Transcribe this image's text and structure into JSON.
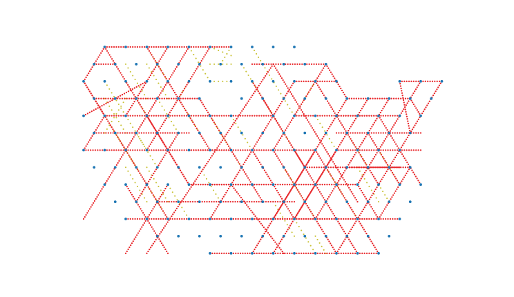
{
  "diagram": {
    "kind": "triangular-lattice-edge-pattern",
    "colors": {
      "node": "#1f77b4",
      "edge_primary": "#e8262a",
      "edge_secondary": "#c9c235"
    },
    "lattice": {
      "cols": 17,
      "rows": 13
    },
    "nodes": [
      [
        1,
        0
      ],
      [
        2,
        0
      ],
      [
        3,
        0
      ],
      [
        4,
        0
      ],
      [
        5,
        0
      ],
      [
        6,
        0
      ],
      [
        7,
        0
      ],
      [
        8,
        0
      ],
      [
        9,
        0
      ],
      [
        10,
        0
      ],
      [
        0.5,
        1
      ],
      [
        1.5,
        1
      ],
      [
        2.5,
        1
      ],
      [
        3.5,
        1
      ],
      [
        4.5,
        1
      ],
      [
        5.5,
        1
      ],
      [
        6.5,
        1
      ],
      [
        7.5,
        1
      ],
      [
        8.5,
        1
      ],
      [
        9.5,
        1
      ],
      [
        10.5,
        1
      ],
      [
        11.5,
        1
      ],
      [
        0,
        2
      ],
      [
        1,
        2
      ],
      [
        2,
        2
      ],
      [
        3,
        2
      ],
      [
        4,
        2
      ],
      [
        5,
        2
      ],
      [
        6,
        2
      ],
      [
        7,
        2
      ],
      [
        8,
        2
      ],
      [
        9,
        2
      ],
      [
        10,
        2
      ],
      [
        11,
        2
      ],
      [
        12,
        2
      ],
      [
        15,
        2
      ],
      [
        16,
        2
      ],
      [
        17,
        2
      ],
      [
        0.5,
        3
      ],
      [
        1.5,
        3
      ],
      [
        2.5,
        3
      ],
      [
        3.5,
        3
      ],
      [
        4.5,
        3
      ],
      [
        5.5,
        3
      ],
      [
        7.5,
        3
      ],
      [
        8.5,
        3
      ],
      [
        9.5,
        3
      ],
      [
        10.5,
        3
      ],
      [
        11.5,
        3
      ],
      [
        12.5,
        3
      ],
      [
        13.5,
        3
      ],
      [
        14.5,
        3
      ],
      [
        15.5,
        3
      ],
      [
        16.5,
        3
      ],
      [
        0,
        4
      ],
      [
        1,
        4
      ],
      [
        2,
        4
      ],
      [
        3,
        4
      ],
      [
        4,
        4
      ],
      [
        5,
        4
      ],
      [
        6,
        4
      ],
      [
        7,
        4
      ],
      [
        9,
        4
      ],
      [
        10,
        4
      ],
      [
        11,
        4
      ],
      [
        12,
        4
      ],
      [
        13,
        4
      ],
      [
        14,
        4
      ],
      [
        15,
        4
      ],
      [
        16,
        4
      ],
      [
        0.5,
        5
      ],
      [
        1.5,
        5
      ],
      [
        2.5,
        5
      ],
      [
        3.5,
        5
      ],
      [
        4.5,
        5
      ],
      [
        5.5,
        5
      ],
      [
        6.5,
        5
      ],
      [
        7.5,
        5
      ],
      [
        8.5,
        5
      ],
      [
        9.5,
        5
      ],
      [
        10.5,
        5
      ],
      [
        11.5,
        5
      ],
      [
        12.5,
        5
      ],
      [
        13.5,
        5
      ],
      [
        14.5,
        5
      ],
      [
        15.5,
        5
      ],
      [
        0,
        6
      ],
      [
        1,
        6
      ],
      [
        2,
        6
      ],
      [
        3,
        6
      ],
      [
        4,
        6
      ],
      [
        5,
        6
      ],
      [
        6,
        6
      ],
      [
        7,
        6
      ],
      [
        8,
        6
      ],
      [
        9,
        6
      ],
      [
        10,
        6
      ],
      [
        11,
        6
      ],
      [
        12,
        6
      ],
      [
        13,
        6
      ],
      [
        14,
        6
      ],
      [
        15,
        6
      ],
      [
        0.5,
        7
      ],
      [
        1.5,
        7
      ],
      [
        2.5,
        7
      ],
      [
        3.5,
        7
      ],
      [
        4.5,
        7
      ],
      [
        5.5,
        7
      ],
      [
        6.5,
        7
      ],
      [
        7.5,
        7
      ],
      [
        8.5,
        7
      ],
      [
        9.5,
        7
      ],
      [
        10.5,
        7
      ],
      [
        11.5,
        7
      ],
      [
        12.5,
        7
      ],
      [
        13.5,
        7
      ],
      [
        14.5,
        7
      ],
      [
        15.5,
        7
      ],
      [
        1,
        8
      ],
      [
        2,
        8
      ],
      [
        3,
        8
      ],
      [
        4,
        8
      ],
      [
        5,
        8
      ],
      [
        6,
        8
      ],
      [
        7,
        8
      ],
      [
        8,
        8
      ],
      [
        9,
        8
      ],
      [
        10,
        8
      ],
      [
        11,
        8
      ],
      [
        12,
        8
      ],
      [
        13,
        8
      ],
      [
        14,
        8
      ],
      [
        15,
        8
      ],
      [
        16,
        8
      ],
      [
        1.5,
        9
      ],
      [
        2.5,
        9
      ],
      [
        3.5,
        9
      ],
      [
        4.5,
        9
      ],
      [
        5.5,
        9
      ],
      [
        6.5,
        9
      ],
      [
        7.5,
        9
      ],
      [
        8.5,
        9
      ],
      [
        9.5,
        9
      ],
      [
        10.5,
        9
      ],
      [
        11.5,
        9
      ],
      [
        12.5,
        9
      ],
      [
        13.5,
        9
      ],
      [
        14.5,
        9
      ],
      [
        15.5,
        9
      ],
      [
        2,
        10
      ],
      [
        3,
        10
      ],
      [
        4,
        10
      ],
      [
        5,
        10
      ],
      [
        6,
        10
      ],
      [
        7,
        10
      ],
      [
        8,
        10
      ],
      [
        9,
        10
      ],
      [
        10,
        10
      ],
      [
        11,
        10
      ],
      [
        12,
        10
      ],
      [
        13,
        10
      ],
      [
        14,
        10
      ],
      [
        15,
        10
      ],
      [
        3.5,
        11
      ],
      [
        4.5,
        11
      ],
      [
        5.5,
        11
      ],
      [
        6.5,
        11
      ],
      [
        7.5,
        11
      ],
      [
        8.5,
        11
      ],
      [
        9.5,
        11
      ],
      [
        10.5,
        11
      ],
      [
        11.5,
        11
      ],
      [
        12.5,
        11
      ],
      [
        13.5,
        11
      ],
      [
        14.5,
        11
      ],
      [
        6,
        12
      ],
      [
        7,
        12
      ],
      [
        8,
        12
      ],
      [
        9,
        12
      ],
      [
        10,
        12
      ],
      [
        11,
        12
      ],
      [
        12,
        12
      ],
      [
        13,
        12
      ],
      [
        14,
        12
      ]
    ],
    "primary_edges": [
      [
        [
          1,
          0
        ],
        [
          7,
          0
        ]
      ],
      [
        [
          0,
          2
        ],
        [
          1,
          0
        ]
      ],
      [
        [
          0.5,
          1
        ],
        [
          1.5,
          1
        ]
      ],
      [
        [
          1,
          0
        ],
        [
          5,
          8
        ]
      ],
      [
        [
          0,
          2
        ],
        [
          4,
          10
        ]
      ],
      [
        [
          5,
          0
        ],
        [
          0,
          10
        ]
      ],
      [
        [
          3,
          2
        ],
        [
          0,
          4
        ]
      ],
      [
        [
          4,
          0
        ],
        [
          2,
          4
        ]
      ],
      [
        [
          6,
          0
        ],
        [
          3,
          6
        ]
      ],
      [
        [
          3,
          0
        ],
        [
          6,
          6
        ]
      ],
      [
        [
          8,
          1
        ],
        [
          11.5,
          1
        ]
      ],
      [
        [
          9,
          1
        ],
        [
          3,
          12
        ]
      ],
      [
        [
          9,
          1
        ],
        [
          13,
          9
        ]
      ],
      [
        [
          11.5,
          1
        ],
        [
          12.5,
          3
        ]
      ],
      [
        [
          11.5,
          1
        ],
        [
          9,
          6
        ]
      ],
      [
        [
          8,
          2
        ],
        [
          9.5,
          5
        ]
      ],
      [
        [
          10,
          2
        ],
        [
          8,
          6
        ]
      ],
      [
        [
          8.5,
          3
        ],
        [
          10.5,
          7
        ]
      ],
      [
        [
          10,
          2
        ],
        [
          12,
          2
        ]
      ],
      [
        [
          11,
          2
        ],
        [
          11,
          2
        ]
      ],
      [
        [
          0,
          2
        ],
        [
          1,
          4
        ]
      ],
      [
        [
          1,
          4
        ],
        [
          0,
          6
        ]
      ],
      [
        [
          0,
          6
        ],
        [
          2,
          6
        ]
      ],
      [
        [
          1,
          4
        ],
        [
          9,
          4
        ]
      ],
      [
        [
          0.5,
          3
        ],
        [
          5.5,
          3
        ]
      ],
      [
        [
          0.5,
          5
        ],
        [
          5,
          5
        ]
      ],
      [
        [
          5.5,
          3
        ],
        [
          8.5,
          9
        ]
      ],
      [
        [
          5,
          6
        ],
        [
          11,
          6
        ]
      ],
      [
        [
          2,
          6
        ],
        [
          7,
          6
        ]
      ],
      [
        [
          3,
          4
        ],
        [
          5,
          8
        ]
      ],
      [
        [
          4.5,
          5
        ],
        [
          2.5,
          9
        ]
      ],
      [
        [
          6,
          8
        ],
        [
          8,
          8
        ]
      ],
      [
        [
          5,
          8
        ],
        [
          13,
          8
        ]
      ],
      [
        [
          4,
          8
        ],
        [
          2,
          12
        ]
      ],
      [
        [
          2,
          8
        ],
        [
          4,
          12
        ]
      ],
      [
        [
          3.5,
          9
        ],
        [
          10,
          9
        ]
      ],
      [
        [
          2,
          10
        ],
        [
          14,
          10
        ]
      ],
      [
        [
          5,
          10
        ],
        [
          12,
          10
        ]
      ],
      [
        [
          6,
          12
        ],
        [
          14,
          12
        ]
      ],
      [
        [
          6,
          10
        ],
        [
          8,
          6
        ]
      ],
      [
        [
          8,
          6
        ],
        [
          10,
          10
        ]
      ],
      [
        [
          9,
          6
        ],
        [
          12,
          12
        ]
      ],
      [
        [
          10,
          6
        ],
        [
          13,
          12
        ]
      ],
      [
        [
          7,
          8
        ],
        [
          9.5,
          12
        ]
      ],
      [
        [
          11,
          6
        ],
        [
          8,
          12
        ]
      ],
      [
        [
          11,
          6
        ],
        [
          14,
          12
        ]
      ],
      [
        [
          12,
          6
        ],
        [
          9,
          12
        ]
      ],
      [
        [
          11,
          2
        ],
        [
          14,
          8
        ]
      ],
      [
        [
          12.5,
          3
        ],
        [
          15.5,
          3
        ]
      ],
      [
        [
          12,
          4
        ],
        [
          14,
          4
        ]
      ],
      [
        [
          10,
          4
        ],
        [
          15,
          4
        ]
      ],
      [
        [
          12.5,
          3
        ],
        [
          9,
          10
        ]
      ],
      [
        [
          13.5,
          3
        ],
        [
          10,
          10
        ]
      ],
      [
        [
          14.5,
          3
        ],
        [
          11,
          10
        ]
      ],
      [
        [
          15,
          2
        ],
        [
          17,
          2
        ]
      ],
      [
        [
          15,
          2
        ],
        [
          15.5,
          5
        ]
      ],
      [
        [
          17,
          2
        ],
        [
          12,
          12
        ]
      ],
      [
        [
          16,
          2
        ],
        [
          13,
          8
        ]
      ],
      [
        [
          12,
          5
        ],
        [
          16,
          5
        ]
      ],
      [
        [
          13.5,
          5
        ],
        [
          15,
          8
        ]
      ],
      [
        [
          15.5,
          3
        ],
        [
          16,
          4
        ]
      ],
      [
        [
          14,
          4
        ],
        [
          16,
          8
        ]
      ],
      [
        [
          12,
          6
        ],
        [
          16,
          6
        ]
      ],
      [
        [
          12.5,
          7
        ],
        [
          15.5,
          7
        ]
      ],
      [
        [
          10.5,
          7
        ],
        [
          15,
          7
        ]
      ],
      [
        [
          13,
          8
        ],
        [
          14,
          10
        ]
      ],
      [
        [
          15.5,
          7
        ],
        [
          14,
          10
        ]
      ],
      [
        [
          9,
          10
        ],
        [
          15,
          10
        ]
      ]
    ],
    "secondary_edges": [
      [
        [
          3,
          0
        ],
        [
          4,
          2
        ]
      ],
      [
        [
          5,
          0
        ],
        [
          6,
          2
        ]
      ],
      [
        [
          6,
          0
        ],
        [
          7,
          0.5
        ]
      ],
      [
        [
          7,
          0
        ],
        [
          6.5,
          1
        ]
      ],
      [
        [
          8,
          0
        ],
        [
          8.5,
          1
        ]
      ],
      [
        [
          2,
          1
        ],
        [
          3,
          3
        ]
      ],
      [
        [
          3,
          1
        ],
        [
          4,
          3
        ]
      ],
      [
        [
          6,
          1
        ],
        [
          7,
          1
        ]
      ],
      [
        [
          1,
          2
        ],
        [
          2,
          4
        ]
      ],
      [
        [
          2,
          2
        ],
        [
          3,
          4
        ]
      ],
      [
        [
          5,
          2
        ],
        [
          4.5,
          3
        ]
      ],
      [
        [
          6,
          2
        ],
        [
          7,
          2
        ]
      ],
      [
        [
          7.5,
          1
        ],
        [
          9,
          4
        ]
      ],
      [
        [
          8.5,
          1
        ],
        [
          10,
          4
        ]
      ],
      [
        [
          11,
          2
        ],
        [
          10,
          4
        ]
      ],
      [
        [
          1,
          3
        ],
        [
          2,
          5
        ]
      ],
      [
        [
          2,
          3
        ],
        [
          1,
          5
        ]
      ],
      [
        [
          3.5,
          3
        ],
        [
          4.5,
          5
        ]
      ],
      [
        [
          4.5,
          3
        ],
        [
          5.5,
          5
        ]
      ],
      [
        [
          1,
          4
        ],
        [
          2.5,
          7
        ]
      ],
      [
        [
          2,
          4
        ],
        [
          3,
          6
        ]
      ],
      [
        [
          6,
          4
        ],
        [
          7,
          6
        ]
      ],
      [
        [
          7,
          4
        ],
        [
          8,
          6
        ]
      ],
      [
        [
          9,
          4
        ],
        [
          10.5,
          7
        ]
      ],
      [
        [
          11,
          4
        ],
        [
          12,
          6
        ]
      ],
      [
        [
          1.5,
          5
        ],
        [
          3,
          8
        ]
      ],
      [
        [
          2.5,
          5
        ],
        [
          3.5,
          7
        ]
      ],
      [
        [
          6.5,
          5
        ],
        [
          7.5,
          7
        ]
      ],
      [
        [
          12.5,
          5
        ],
        [
          13.5,
          7
        ]
      ],
      [
        [
          14,
          6
        ],
        [
          15,
          8
        ]
      ],
      [
        [
          2,
          7
        ],
        [
          3,
          9
        ]
      ],
      [
        [
          3,
          7
        ],
        [
          4,
          9
        ]
      ],
      [
        [
          5.5,
          7
        ],
        [
          6.5,
          9
        ]
      ],
      [
        [
          9.5,
          7
        ],
        [
          10.5,
          9
        ]
      ],
      [
        [
          11.5,
          7
        ],
        [
          12.5,
          9
        ]
      ],
      [
        [
          13,
          7
        ],
        [
          14,
          9
        ]
      ],
      [
        [
          3,
          8
        ],
        [
          4,
          10
        ]
      ],
      [
        [
          4,
          8
        ],
        [
          5,
          10
        ]
      ],
      [
        [
          10,
          8
        ],
        [
          11,
          10
        ]
      ],
      [
        [
          12,
          8
        ],
        [
          13,
          10
        ]
      ],
      [
        [
          14,
          8
        ],
        [
          14.5,
          9
        ]
      ],
      [
        [
          9,
          9
        ],
        [
          10,
          11
        ]
      ],
      [
        [
          10,
          10
        ],
        [
          11,
          12
        ]
      ],
      [
        [
          11,
          11
        ],
        [
          11.5,
          12
        ]
      ]
    ]
  }
}
